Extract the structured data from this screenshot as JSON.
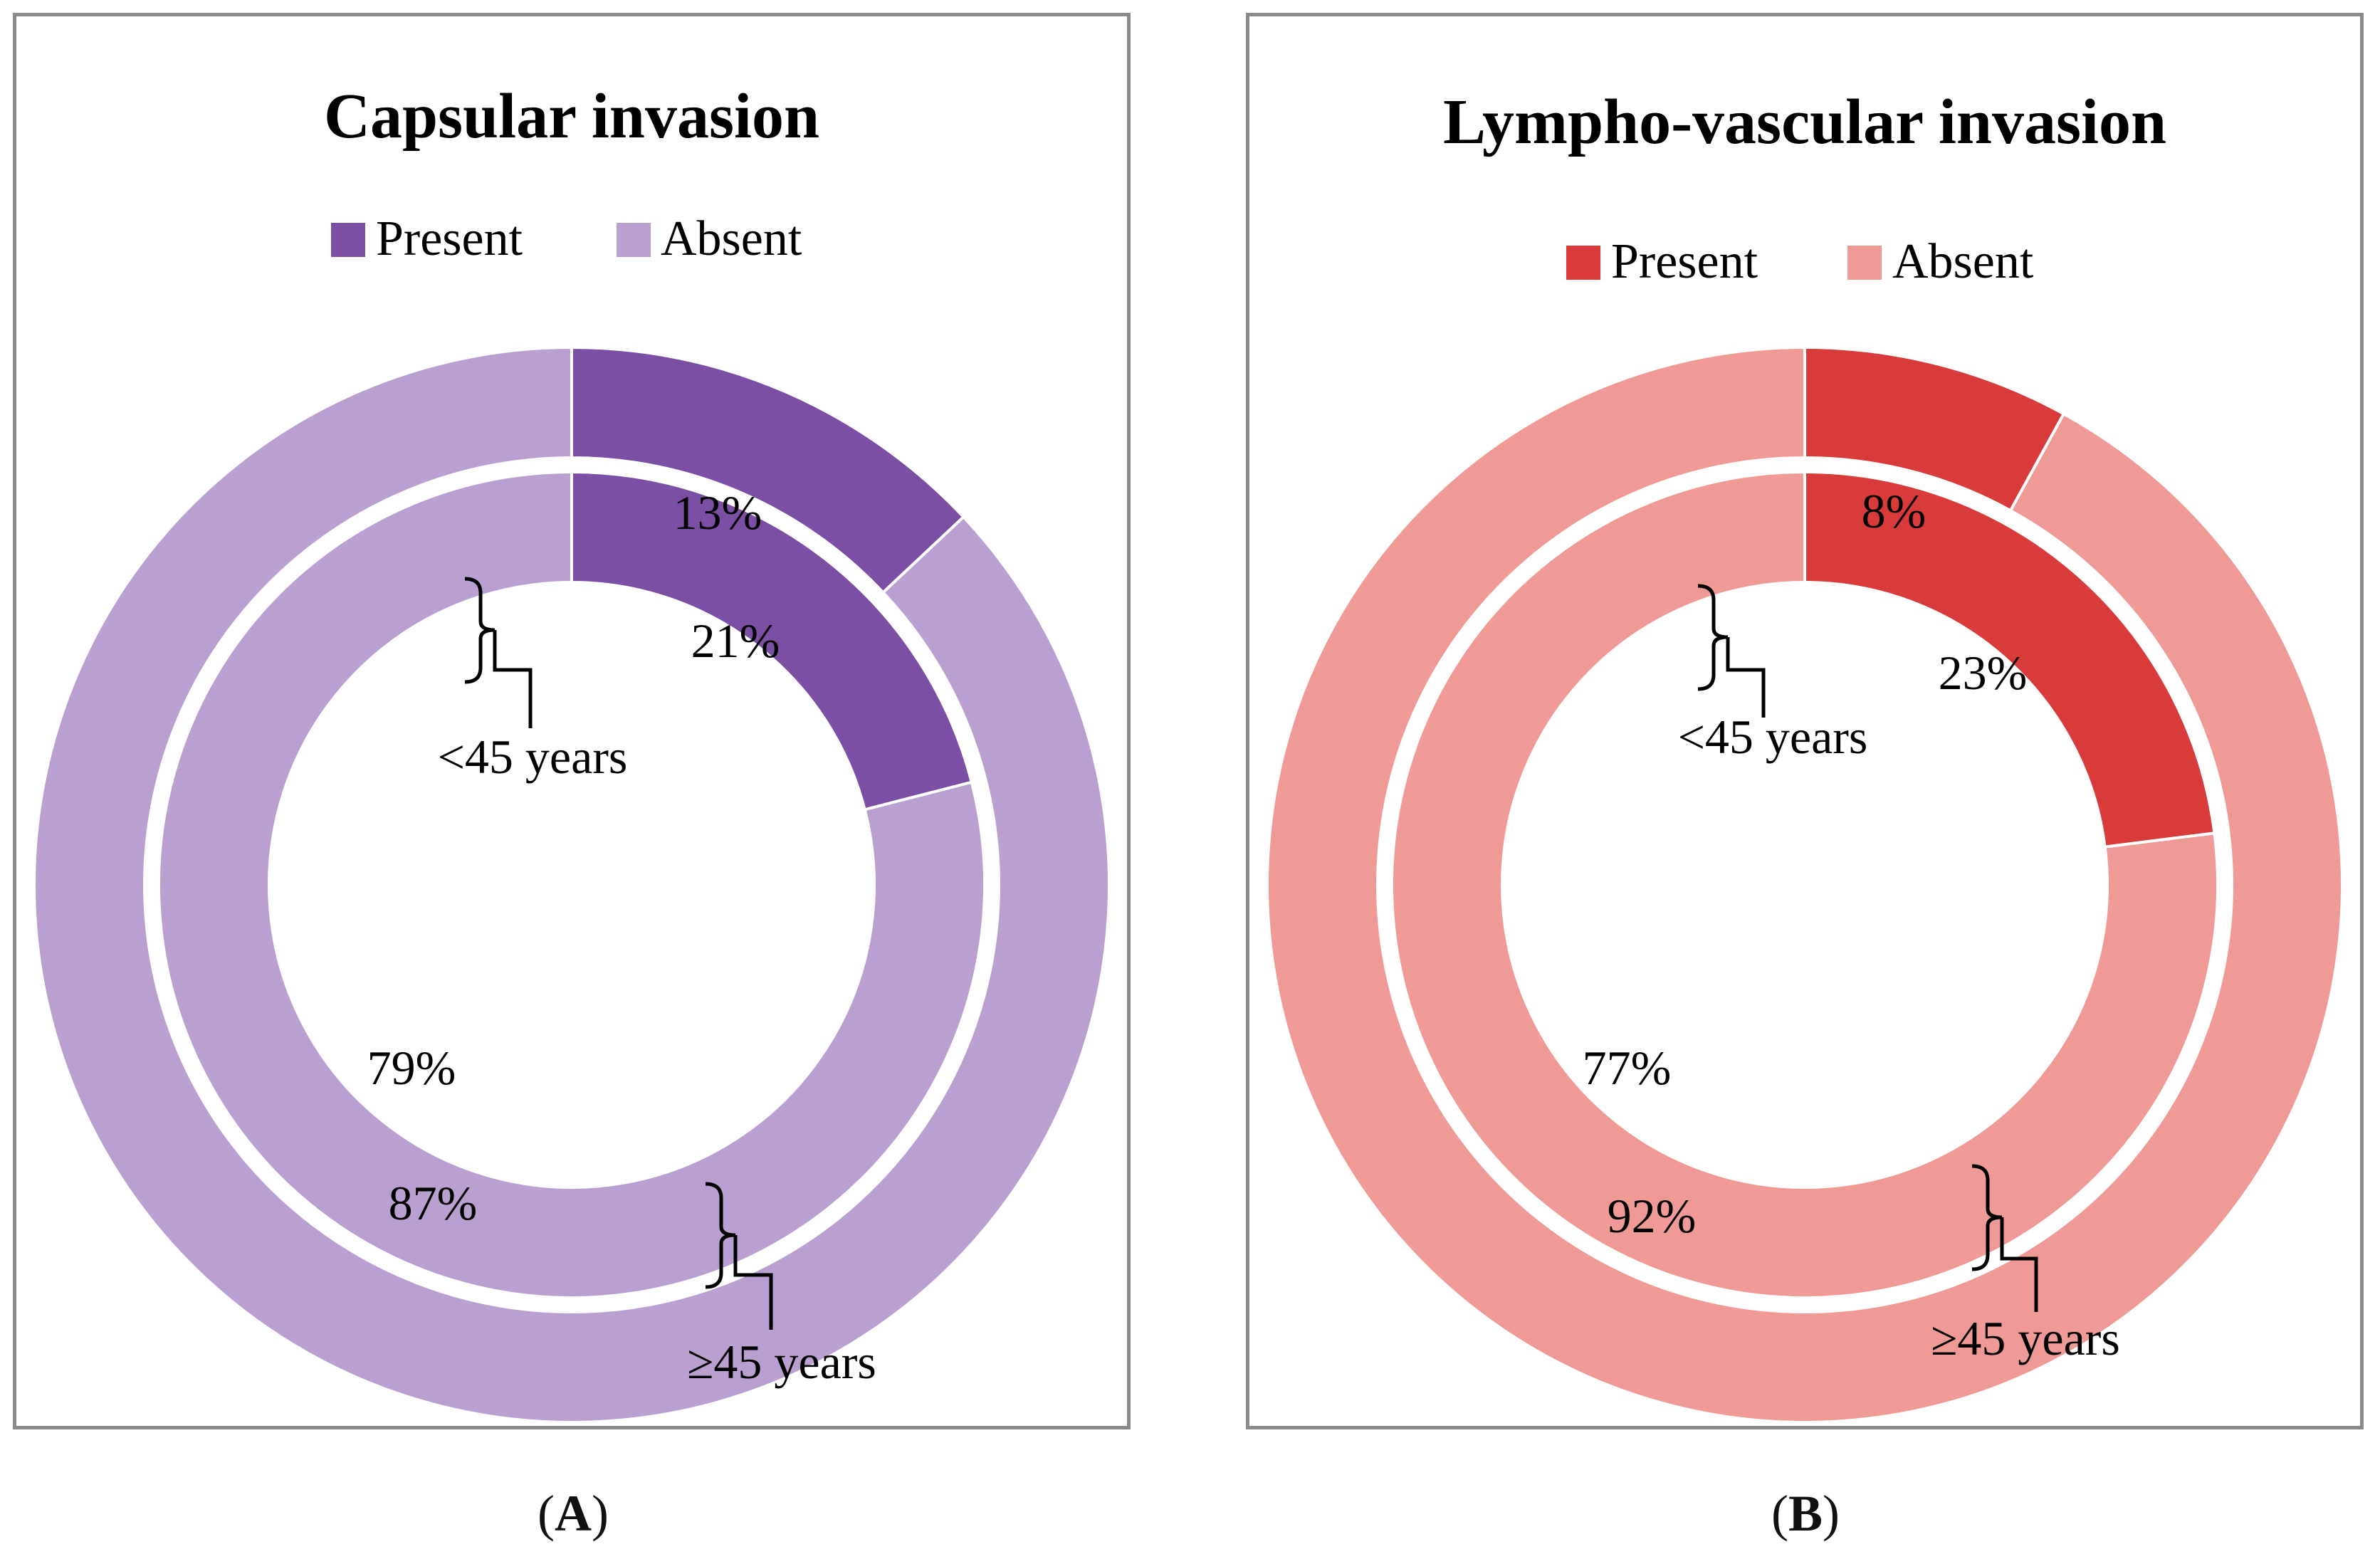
{
  "charts": [
    {
      "title": "Capsular invasion",
      "legend": {
        "present": "Present",
        "absent": "Absent"
      },
      "colors": {
        "present": "#7b4fa3",
        "absent": "#b9a0d0"
      },
      "outer": {
        "present": 13,
        "absent": 87,
        "present_label": "13%",
        "absent_label": "87%",
        "group_label": "≥45 years"
      },
      "inner": {
        "present": 21,
        "absent": 79,
        "present_label": "21%",
        "absent_label": "79%",
        "group_label": "<45 years"
      },
      "caption_letter": "A"
    },
    {
      "title": "Lympho-vascular invasion",
      "legend": {
        "present": "Present",
        "absent": "Absent"
      },
      "colors": {
        "present": "#d93a3a",
        "absent": "#ef9a96"
      },
      "outer": {
        "present": 8,
        "absent": 92,
        "present_label": "8%",
        "absent_label": "92%",
        "group_label": "≥45 years"
      },
      "inner": {
        "present": 23,
        "absent": 77,
        "present_label": "23%",
        "absent_label": "77%",
        "group_label": "<45 years"
      },
      "caption_letter": "B"
    }
  ],
  "chart_data": [
    {
      "type": "pie",
      "title": "Capsular invasion",
      "series": [
        {
          "name": "<45 years",
          "categories": [
            "Present",
            "Absent"
          ],
          "values": [
            21,
            79
          ]
        },
        {
          "name": "≥45 years",
          "categories": [
            "Present",
            "Absent"
          ],
          "values": [
            13,
            87
          ]
        }
      ],
      "legend": [
        "Present",
        "Absent"
      ]
    },
    {
      "type": "pie",
      "title": "Lympho-vascular invasion",
      "series": [
        {
          "name": "<45 years",
          "categories": [
            "Present",
            "Absent"
          ],
          "values": [
            23,
            77
          ]
        },
        {
          "name": "≥45 years",
          "categories": [
            "Present",
            "Absent"
          ],
          "values": [
            8,
            92
          ]
        }
      ],
      "legend": [
        "Present",
        "Absent"
      ]
    }
  ]
}
